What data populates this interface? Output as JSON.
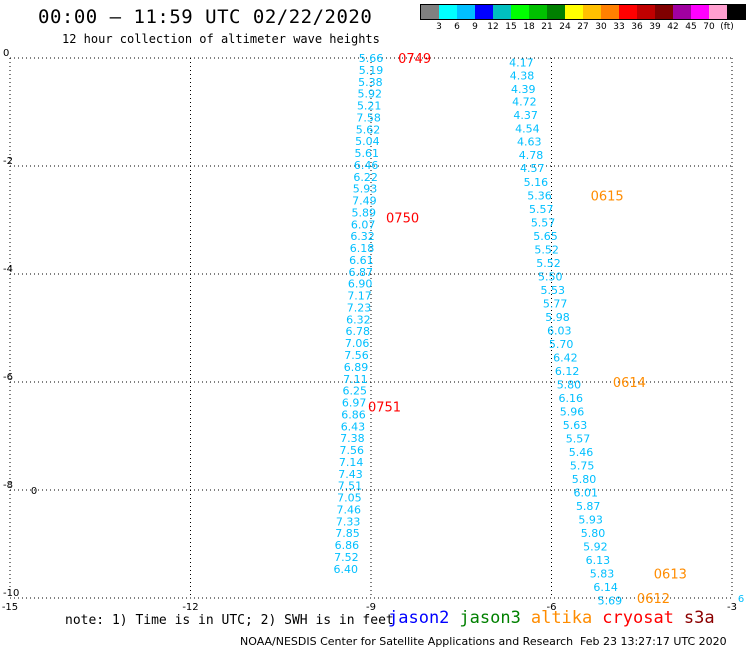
{
  "header": {
    "title": "00:00 – 11:59 UTC 02/22/2020",
    "subtitle": "12 hour collection of altimeter wave heights"
  },
  "color_scale": {
    "colors": [
      "#808080",
      "#00ffff",
      "#00bfff",
      "#0000ff",
      "#00bfbf",
      "#00ff00",
      "#00c000",
      "#008000",
      "#ffff00",
      "#ffc000",
      "#ff8000",
      "#ff0000",
      "#c00000",
      "#800000",
      "#a000a0",
      "#ff00ff",
      "#ff9fd0",
      "#000000"
    ],
    "labels": [
      "3",
      "6",
      "9",
      "12",
      "15",
      "18",
      "21",
      "24",
      "27",
      "30",
      "33",
      "36",
      "39",
      "42",
      "45",
      "70",
      "(ft)"
    ]
  },
  "footer": {
    "note": "note: 1) Time is in UTC; 2) SWH is in feet",
    "satellites": [
      {
        "name": "jason2",
        "color": "#0000ff"
      },
      {
        "name": "jason3",
        "color": "#008000"
      },
      {
        "name": "altika",
        "color": "#ff8c00"
      },
      {
        "name": "cryosat",
        "color": "#ff0000"
      },
      {
        "name": "s3a",
        "color": "#8b0000"
      }
    ],
    "credit": "NOAA/NESDIS Center for Satellite Applications and Research",
    "timestamp": "Feb 23 13:27:17 UTC 2020"
  },
  "chart_data": {
    "type": "scatter",
    "xlim": [
      -15,
      -3
    ],
    "ylim": [
      -10,
      0
    ],
    "x_ticks": [
      "-15",
      "-12",
      "-9",
      "-6",
      "-3"
    ],
    "y_ticks": [
      "0",
      "-2",
      "-4",
      "-6",
      "-8",
      "-10"
    ],
    "grid": true,
    "value_color": "#00bfff",
    "tracks": [
      {
        "satellite": "cryosat",
        "color": "#ff0000",
        "points": [
          {
            "x": -9.0,
            "y": 0.0,
            "v": "5.66"
          },
          {
            "x": -9.0,
            "y": -0.22,
            "v": "5.19"
          },
          {
            "x": -9.01,
            "y": -0.44,
            "v": "5.38"
          },
          {
            "x": -9.02,
            "y": -0.66,
            "v": "5.92"
          },
          {
            "x": -9.03,
            "y": -0.88,
            "v": "5.21"
          },
          {
            "x": -9.04,
            "y": -1.1,
            "v": "7.58"
          },
          {
            "x": -9.05,
            "y": -1.32,
            "v": "5.62"
          },
          {
            "x": -9.06,
            "y": -1.54,
            "v": "5.04"
          },
          {
            "x": -9.07,
            "y": -1.76,
            "v": "5.61"
          },
          {
            "x": -9.08,
            "y": -1.98,
            "v": "6.46"
          },
          {
            "x": -9.09,
            "y": -2.2,
            "v": "6.22"
          },
          {
            "x": -9.1,
            "y": -2.42,
            "v": "5.93"
          },
          {
            "x": -9.11,
            "y": -2.64,
            "v": "7.49"
          },
          {
            "x": -9.12,
            "y": -2.86,
            "v": "5.89"
          },
          {
            "x": -9.13,
            "y": -3.08,
            "v": "6.07"
          },
          {
            "x": -9.14,
            "y": -3.3,
            "v": "6.32"
          },
          {
            "x": -9.15,
            "y": -3.52,
            "v": "6.18"
          },
          {
            "x": -9.16,
            "y": -3.74,
            "v": "6.61"
          },
          {
            "x": -9.17,
            "y": -3.96,
            "v": "6.87"
          },
          {
            "x": -9.18,
            "y": -4.18,
            "v": "6.90"
          },
          {
            "x": -9.19,
            "y": -4.4,
            "v": "7.17"
          },
          {
            "x": -9.2,
            "y": -4.62,
            "v": "7.23"
          },
          {
            "x": -9.21,
            "y": -4.84,
            "v": "6.32"
          },
          {
            "x": -9.22,
            "y": -5.06,
            "v": "6.78"
          },
          {
            "x": -9.23,
            "y": -5.28,
            "v": "7.06"
          },
          {
            "x": -9.24,
            "y": -5.5,
            "v": "7.56"
          },
          {
            "x": -9.25,
            "y": -5.72,
            "v": "6.89"
          },
          {
            "x": -9.26,
            "y": -5.94,
            "v": "7.11"
          },
          {
            "x": -9.27,
            "y": -6.16,
            "v": "6.25"
          },
          {
            "x": -9.28,
            "y": -6.38,
            "v": "6.97"
          },
          {
            "x": -9.29,
            "y": -6.6,
            "v": "6.86"
          },
          {
            "x": -9.3,
            "y": -6.82,
            "v": "6.43"
          },
          {
            "x": -9.31,
            "y": -7.04,
            "v": "7.38"
          },
          {
            "x": -9.32,
            "y": -7.26,
            "v": "7.56"
          },
          {
            "x": -9.33,
            "y": -7.48,
            "v": "7.14"
          },
          {
            "x": -9.34,
            "y": -7.7,
            "v": "7.43"
          },
          {
            "x": -9.35,
            "y": -7.92,
            "v": "7.51"
          },
          {
            "x": -9.36,
            "y": -8.14,
            "v": "7.05"
          },
          {
            "x": -9.37,
            "y": -8.36,
            "v": "7.46"
          },
          {
            "x": -9.38,
            "y": -8.58,
            "v": "7.33"
          },
          {
            "x": -9.39,
            "y": -8.8,
            "v": "7.85"
          },
          {
            "x": -9.4,
            "y": -9.02,
            "v": "6.86"
          },
          {
            "x": -9.41,
            "y": -9.24,
            "v": "7.52"
          },
          {
            "x": -9.42,
            "y": -9.46,
            "v": "6.40"
          }
        ],
        "time_labels": [
          {
            "x": -8.55,
            "y": 0.0,
            "t": "0749"
          },
          {
            "x": -8.75,
            "y": -2.95,
            "t": "0750"
          },
          {
            "x": -9.05,
            "y": -6.45,
            "t": "0751"
          }
        ]
      },
      {
        "satellite": "altika",
        "color": "#ff8c00",
        "points": [
          {
            "x": -6.5,
            "y": -0.08,
            "v": "4.17"
          },
          {
            "x": -6.49,
            "y": -0.32,
            "v": "4.38"
          },
          {
            "x": -6.47,
            "y": -0.57,
            "v": "4.39"
          },
          {
            "x": -6.45,
            "y": -0.81,
            "v": "4.72"
          },
          {
            "x": -6.43,
            "y": -1.06,
            "v": "4.37"
          },
          {
            "x": -6.4,
            "y": -1.31,
            "v": "4.54"
          },
          {
            "x": -6.37,
            "y": -1.55,
            "v": "4.63"
          },
          {
            "x": -6.34,
            "y": -1.8,
            "v": "4.78"
          },
          {
            "x": -6.32,
            "y": -2.04,
            "v": "4.57"
          },
          {
            "x": -6.26,
            "y": -2.3,
            "v": "5.16"
          },
          {
            "x": -6.2,
            "y": -2.55,
            "v": "5.36"
          },
          {
            "x": -6.17,
            "y": -2.8,
            "v": "5.57"
          },
          {
            "x": -6.14,
            "y": -3.05,
            "v": "5.57"
          },
          {
            "x": -6.1,
            "y": -3.3,
            "v": "5.65"
          },
          {
            "x": -6.08,
            "y": -3.55,
            "v": "5.52"
          },
          {
            "x": -6.05,
            "y": -3.8,
            "v": "5.52"
          },
          {
            "x": -6.02,
            "y": -4.05,
            "v": "5.50"
          },
          {
            "x": -5.98,
            "y": -4.3,
            "v": "5.53"
          },
          {
            "x": -5.94,
            "y": -4.55,
            "v": "5.77"
          },
          {
            "x": -5.9,
            "y": -4.8,
            "v": "5.98"
          },
          {
            "x": -5.87,
            "y": -5.05,
            "v": "6.03"
          },
          {
            "x": -5.84,
            "y": -5.3,
            "v": "5.70"
          },
          {
            "x": -5.77,
            "y": -5.55,
            "v": "6.42"
          },
          {
            "x": -5.74,
            "y": -5.8,
            "v": "6.12"
          },
          {
            "x": -5.71,
            "y": -6.05,
            "v": "5.80"
          },
          {
            "x": -5.68,
            "y": -6.3,
            "v": "6.16"
          },
          {
            "x": -5.66,
            "y": -6.55,
            "v": "5.96"
          },
          {
            "x": -5.61,
            "y": -6.8,
            "v": "5.63"
          },
          {
            "x": -5.56,
            "y": -7.05,
            "v": "5.57"
          },
          {
            "x": -5.51,
            "y": -7.3,
            "v": "5.46"
          },
          {
            "x": -5.49,
            "y": -7.55,
            "v": "5.75"
          },
          {
            "x": -5.46,
            "y": -7.8,
            "v": "5.80"
          },
          {
            "x": -5.43,
            "y": -8.05,
            "v": "6.01"
          },
          {
            "x": -5.39,
            "y": -8.3,
            "v": "5.87"
          },
          {
            "x": -5.35,
            "y": -8.55,
            "v": "5.93"
          },
          {
            "x": -5.31,
            "y": -8.8,
            "v": "5.80"
          },
          {
            "x": -5.27,
            "y": -9.05,
            "v": "5.92"
          },
          {
            "x": -5.23,
            "y": -9.3,
            "v": "6.13"
          },
          {
            "x": -5.16,
            "y": -9.55,
            "v": "5.83"
          },
          {
            "x": -5.1,
            "y": -9.8,
            "v": "6.14"
          },
          {
            "x": -5.03,
            "y": -10.05,
            "v": "5.69"
          }
        ],
        "time_labels": [
          {
            "x": -5.35,
            "y": -2.55,
            "t": "0615"
          },
          {
            "x": -4.98,
            "y": -6.0,
            "t": "0614"
          },
          {
            "x": -4.3,
            "y": -9.55,
            "t": "0613"
          },
          {
            "x": -4.58,
            "y": -10.0,
            "t": "0612"
          }
        ]
      }
    ],
    "extra_marks": [
      {
        "x": -14.6,
        "y": -8.0,
        "v": "0"
      },
      {
        "x": -2.85,
        "y": -10.0,
        "v": "6"
      }
    ]
  }
}
